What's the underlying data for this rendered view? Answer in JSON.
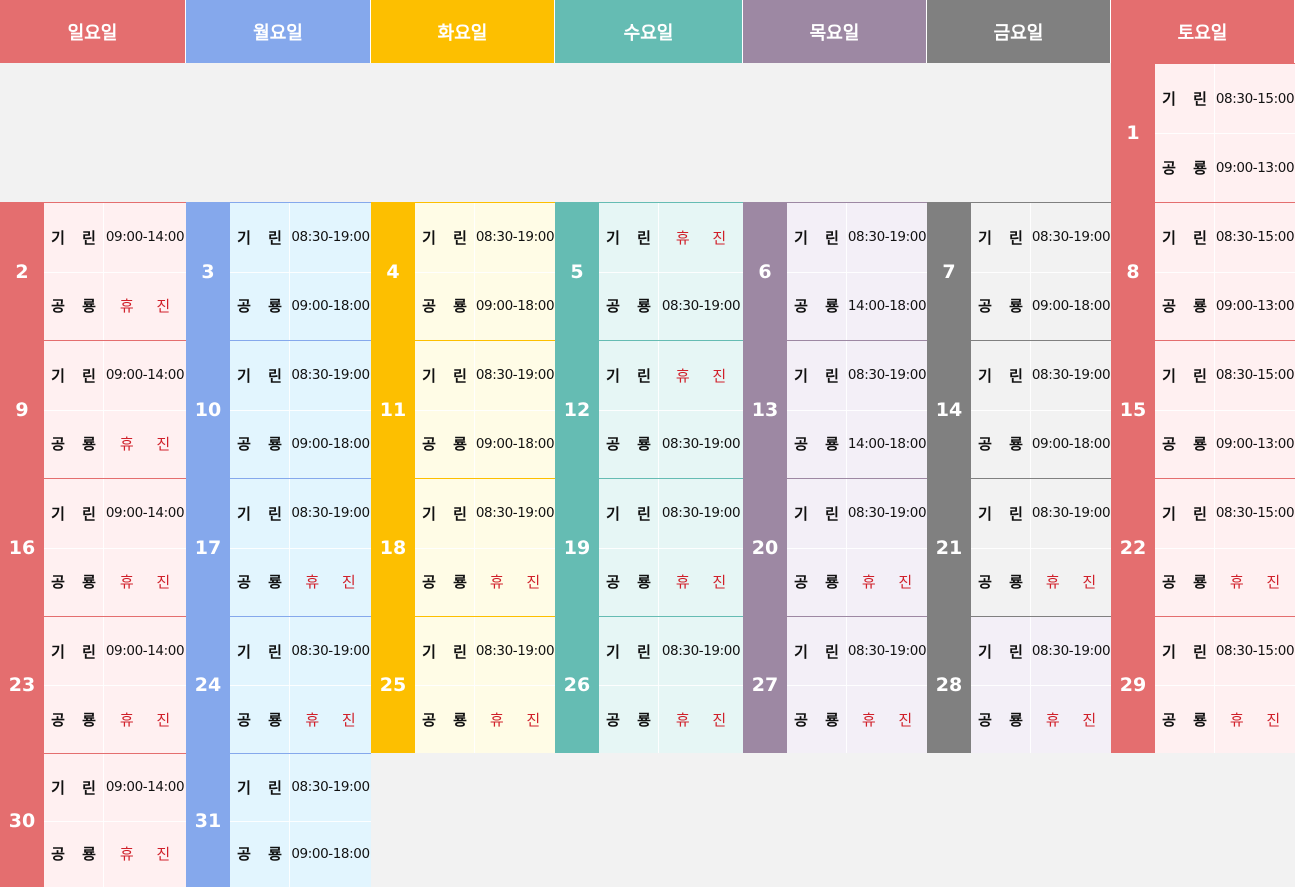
{
  "colors": {
    "day_bg": [
      "#e46e6f",
      "#85a8ec",
      "#fdbf00",
      "#65bcb3",
      "#9d88a3",
      "#808080",
      "#e46e6f"
    ],
    "cell_bg": [
      "#fff0f1",
      "#e2f5fe",
      "#fffce6",
      "#e6f6f5",
      "#f3eff7",
      "#f2f2f2",
      "#fff0f1"
    ],
    "off_text": "#d0202a",
    "page_bg": "#f2f2f2"
  },
  "weekdays": [
    "일요일",
    "월요일",
    "화요일",
    "수요일",
    "목요일",
    "금요일",
    "토요일"
  ],
  "row_labels": {
    "giryn": "기 린",
    "gongryong": "공 룡"
  },
  "off_text": "휴 진",
  "days": [
    {
      "date": "1",
      "weekday": 6,
      "row": 0,
      "giryn": "08:30-15:00",
      "gongryong": "09:00-13:00"
    },
    {
      "date": "2",
      "weekday": 0,
      "row": 1,
      "giryn": "09:00-14:00",
      "gongryong": "휴 진"
    },
    {
      "date": "3",
      "weekday": 1,
      "row": 1,
      "giryn": "08:30-19:00",
      "gongryong": "09:00-18:00"
    },
    {
      "date": "4",
      "weekday": 2,
      "row": 1,
      "giryn": "08:30-19:00",
      "gongryong": "09:00-18:00"
    },
    {
      "date": "5",
      "weekday": 3,
      "row": 1,
      "giryn": "휴 진",
      "gongryong": "08:30-19:00"
    },
    {
      "date": "6",
      "weekday": 4,
      "row": 1,
      "giryn": "08:30-19:00",
      "gongryong": "14:00-18:00"
    },
    {
      "date": "7",
      "weekday": 5,
      "row": 1,
      "giryn": "08:30-19:00",
      "gongryong": "09:00-18:00"
    },
    {
      "date": "8",
      "weekday": 6,
      "row": 1,
      "giryn": "08:30-15:00",
      "gongryong": "09:00-13:00"
    },
    {
      "date": "9",
      "weekday": 0,
      "row": 2,
      "giryn": "09:00-14:00",
      "gongryong": "휴 진"
    },
    {
      "date": "10",
      "weekday": 1,
      "row": 2,
      "giryn": "08:30-19:00",
      "gongryong": "09:00-18:00"
    },
    {
      "date": "11",
      "weekday": 2,
      "row": 2,
      "giryn": "08:30-19:00",
      "gongryong": "09:00-18:00"
    },
    {
      "date": "12",
      "weekday": 3,
      "row": 2,
      "giryn": "휴 진",
      "gongryong": "08:30-19:00"
    },
    {
      "date": "13",
      "weekday": 4,
      "row": 2,
      "giryn": "08:30-19:00",
      "gongryong": "14:00-18:00"
    },
    {
      "date": "14",
      "weekday": 5,
      "row": 2,
      "giryn": "08:30-19:00",
      "gongryong": "09:00-18:00"
    },
    {
      "date": "15",
      "weekday": 6,
      "row": 2,
      "giryn": "08:30-15:00",
      "gongryong": "09:00-13:00"
    },
    {
      "date": "16",
      "weekday": 0,
      "row": 3,
      "giryn": "09:00-14:00",
      "gongryong": "휴 진"
    },
    {
      "date": "17",
      "weekday": 1,
      "row": 3,
      "giryn": "08:30-19:00",
      "gongryong": "휴 진"
    },
    {
      "date": "18",
      "weekday": 2,
      "row": 3,
      "giryn": "08:30-19:00",
      "gongryong": "휴 진"
    },
    {
      "date": "19",
      "weekday": 3,
      "row": 3,
      "giryn": "08:30-19:00",
      "gongryong": "휴 진"
    },
    {
      "date": "20",
      "weekday": 4,
      "row": 3,
      "giryn": "08:30-19:00",
      "gongryong": "휴 진"
    },
    {
      "date": "21",
      "weekday": 5,
      "row": 3,
      "giryn": "08:30-19:00",
      "gongryong": "휴 진"
    },
    {
      "date": "22",
      "weekday": 6,
      "row": 3,
      "giryn": "08:30-15:00",
      "gongryong": "휴 진"
    },
    {
      "date": "23",
      "weekday": 0,
      "row": 4,
      "giryn": "09:00-14:00",
      "gongryong": "휴 진"
    },
    {
      "date": "24",
      "weekday": 1,
      "row": 4,
      "giryn": "08:30-19:00",
      "gongryong": "휴 진"
    },
    {
      "date": "25",
      "weekday": 2,
      "row": 4,
      "giryn": "08:30-19:00",
      "gongryong": "휴 진"
    },
    {
      "date": "26",
      "weekday": 3,
      "row": 4,
      "giryn": "08:30-19:00",
      "gongryong": "휴 진"
    },
    {
      "date": "27",
      "weekday": 4,
      "row": 4,
      "giryn": "08:30-19:00",
      "gongryong": "휴 진"
    },
    {
      "date": "28",
      "weekday": 5,
      "row": 4,
      "giryn": "08:30-19:00",
      "gongryong": "휴 진",
      "cell_bg_override": "#f3eff7"
    },
    {
      "date": "29",
      "weekday": 6,
      "row": 4,
      "giryn": "08:30-15:00",
      "gongryong": "휴 진"
    },
    {
      "date": "30",
      "weekday": 0,
      "row": 5,
      "giryn": "09:00-14:00",
      "gongryong": "휴 진"
    },
    {
      "date": "31",
      "weekday": 1,
      "row": 5,
      "giryn": "08:30-19:00",
      "gongryong": "09:00-18:00"
    }
  ]
}
